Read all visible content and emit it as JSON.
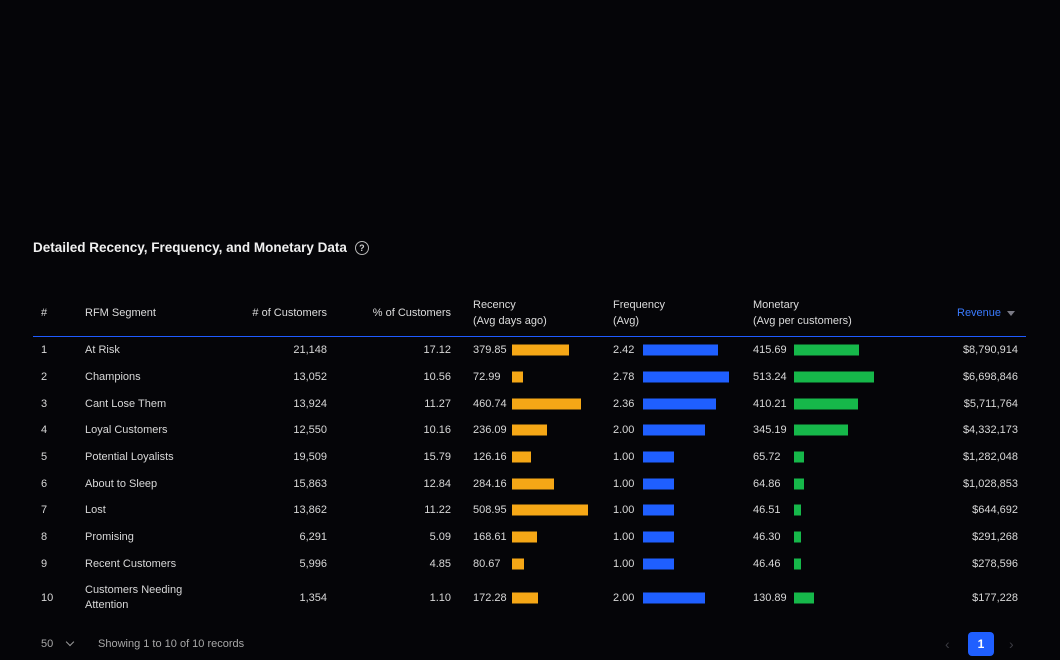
{
  "section": {
    "title": "Detailed Recency, Frequency, and Monetary Data",
    "help_icon": "question-circle-icon"
  },
  "columns": {
    "index": "#",
    "segment": "RFM Segment",
    "customers": "# of Customers",
    "pct": "% of Customers",
    "recency_l1": "Recency",
    "recency_l2": "(Avg days ago)",
    "frequency_l1": "Frequency",
    "frequency_l2": "(Avg)",
    "monetary_l1": "Monetary",
    "monetary_l2": "(Avg per customers)",
    "revenue": "Revenue"
  },
  "colors": {
    "recency": "#f5a716",
    "frequency": "#1f5fff",
    "monetary": "#16b84a",
    "accent": "#1f5bff"
  },
  "rows": [
    {
      "n": "1",
      "segment": "At Risk",
      "customers": "21,148",
      "pct": "17.12",
      "recency": "379.85",
      "frequency": "2.42",
      "monetary": "415.69",
      "revenue": "$8,790,914"
    },
    {
      "n": "2",
      "segment": "Champions",
      "customers": "13,052",
      "pct": "10.56",
      "recency": "72.99",
      "frequency": "2.78",
      "monetary": "513.24",
      "revenue": "$6,698,846"
    },
    {
      "n": "3",
      "segment": "Cant Lose Them",
      "customers": "13,924",
      "pct": "11.27",
      "recency": "460.74",
      "frequency": "2.36",
      "monetary": "410.21",
      "revenue": "$5,711,764"
    },
    {
      "n": "4",
      "segment": "Loyal Customers",
      "customers": "12,550",
      "pct": "10.16",
      "recency": "236.09",
      "frequency": "2.00",
      "monetary": "345.19",
      "revenue": "$4,332,173"
    },
    {
      "n": "5",
      "segment": "Potential Loyalists",
      "customers": "19,509",
      "pct": "15.79",
      "recency": "126.16",
      "frequency": "1.00",
      "monetary": "65.72",
      "revenue": "$1,282,048"
    },
    {
      "n": "6",
      "segment": "About to Sleep",
      "customers": "15,863",
      "pct": "12.84",
      "recency": "284.16",
      "frequency": "1.00",
      "monetary": "64.86",
      "revenue": "$1,028,853"
    },
    {
      "n": "7",
      "segment": "Lost",
      "customers": "13,862",
      "pct": "11.22",
      "recency": "508.95",
      "frequency": "1.00",
      "monetary": "46.51",
      "revenue": "$644,692"
    },
    {
      "n": "8",
      "segment": "Promising",
      "customers": "6,291",
      "pct": "5.09",
      "recency": "168.61",
      "frequency": "1.00",
      "monetary": "46.30",
      "revenue": "$291,268"
    },
    {
      "n": "9",
      "segment": "Recent Customers",
      "customers": "5,996",
      "pct": "4.85",
      "recency": "80.67",
      "frequency": "1.00",
      "monetary": "46.46",
      "revenue": "$278,596"
    },
    {
      "n": "10",
      "segment": "Customers Needing Attention",
      "customers": "1,354",
      "pct": "1.10",
      "recency": "172.28",
      "frequency": "2.00",
      "monetary": "130.89",
      "revenue": "$177,228"
    }
  ],
  "scales": {
    "recency_max": 508.95,
    "frequency_max": 2.78,
    "monetary_max": 513.24
  },
  "footer": {
    "page_size": "50",
    "showing": "Showing 1 to 10 of 10 records",
    "current_page": "1",
    "prev": "‹",
    "next": "›"
  }
}
